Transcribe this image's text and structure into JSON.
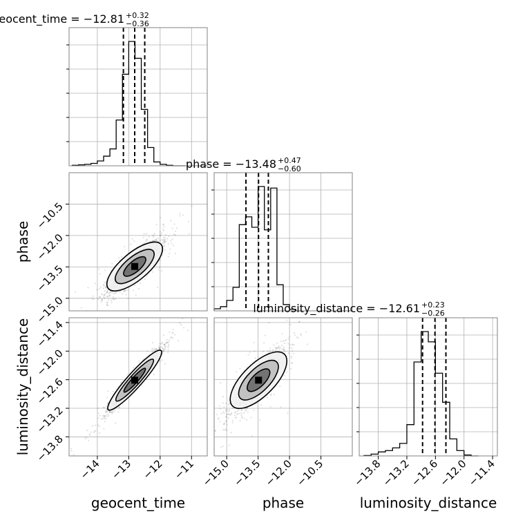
{
  "chart_data": {
    "type": "corner",
    "parameters": [
      "geocent_time",
      "phase",
      "luminosity_distance"
    ],
    "titles": [
      {
        "param": "geocent_time",
        "label": "geocent_time",
        "median": "−12.81",
        "plus": "+0.32",
        "minus": "−0.36"
      },
      {
        "param": "phase",
        "label": "phase",
        "median": "−13.48",
        "plus": "+0.47",
        "minus": "−0.60"
      },
      {
        "param": "luminosity_distance",
        "label": "luminosity_distance",
        "median": "−12.61",
        "plus": "+0.23",
        "minus": "−0.26"
      }
    ],
    "axis_labels": {
      "x": [
        "geocent_time",
        "phase",
        "luminosity_distance"
      ],
      "y": [
        "phase",
        "luminosity_distance"
      ]
    },
    "ranges": {
      "geocent_time": [
        -14.9,
        -10.5
      ],
      "phase": [
        -15.6,
        -9.0
      ],
      "luminosity_distance": [
        -14.2,
        -11.3
      ]
    },
    "ticks": {
      "geocent_time": {
        "values": [
          -14,
          -13,
          -12,
          -11
        ],
        "labels": [
          "−14",
          "−13",
          "−12",
          "−11"
        ]
      },
      "phase": {
        "values": [
          -15.0,
          -13.5,
          -12.0,
          -10.5
        ],
        "labels": [
          "−15.0",
          "−13.5",
          "−12.0",
          "−10.5"
        ]
      },
      "luminosity_distance": {
        "values": [
          -13.8,
          -13.2,
          -12.6,
          -12.0,
          -11.4
        ],
        "labels": [
          "−13.8",
          "−13.2",
          "−12.6",
          "−12.0",
          "−11.4"
        ]
      }
    },
    "quantile_lines": {
      "geocent_time": [
        -13.17,
        -12.81,
        -12.49
      ],
      "phase": [
        -14.08,
        -13.48,
        -13.01
      ],
      "luminosity_distance": [
        -12.87,
        -12.61,
        -12.38
      ]
    },
    "histograms": {
      "geocent_time": {
        "edges": [
          -14.8,
          -14.6,
          -14.4,
          -14.2,
          -14.0,
          -13.8,
          -13.6,
          -13.4,
          -13.2,
          -13.0,
          -12.8,
          -12.6,
          -12.4,
          -12.2,
          -12.0,
          -11.8,
          -11.6,
          -11.4,
          -11.2
        ],
        "counts": [
          1,
          2,
          3,
          5,
          10,
          20,
          35,
          95,
          190,
          258,
          223,
          117,
          38,
          8,
          3,
          1,
          0,
          0
        ]
      },
      "phase": {
        "edges": [
          -15.6,
          -15.3,
          -15.0,
          -14.7,
          -14.4,
          -14.1,
          -13.8,
          -13.5,
          -13.2,
          -12.9,
          -12.6,
          -12.3,
          -12.0,
          -11.7,
          -11.4
        ],
        "counts": [
          4,
          8,
          20,
          45,
          165,
          180,
          160,
          238,
          155,
          235,
          50,
          12,
          3,
          0
        ]
      },
      "luminosity_distance": {
        "edges": [
          -14.1,
          -13.95,
          -13.8,
          -13.65,
          -13.5,
          -13.35,
          -13.2,
          -13.05,
          -12.9,
          -12.75,
          -12.6,
          -12.45,
          -12.3,
          -12.15,
          -12.0,
          -11.85,
          -11.7
        ],
        "counts": [
          1,
          4,
          9,
          12,
          18,
          28,
          70,
          210,
          278,
          255,
          185,
          120,
          38,
          12,
          2,
          0
        ]
      }
    },
    "scatter_summary": [
      {
        "x": "geocent_time",
        "y": "phase",
        "center": [
          -12.81,
          -13.48
        ],
        "correlation": 0.85
      },
      {
        "x": "geocent_time",
        "y": "luminosity_distance",
        "center": [
          -12.81,
          -12.61
        ],
        "correlation": 0.97
      },
      {
        "x": "phase",
        "y": "luminosity_distance",
        "center": [
          -13.48,
          -12.61
        ],
        "correlation": 0.85
      }
    ],
    "grid": true
  }
}
